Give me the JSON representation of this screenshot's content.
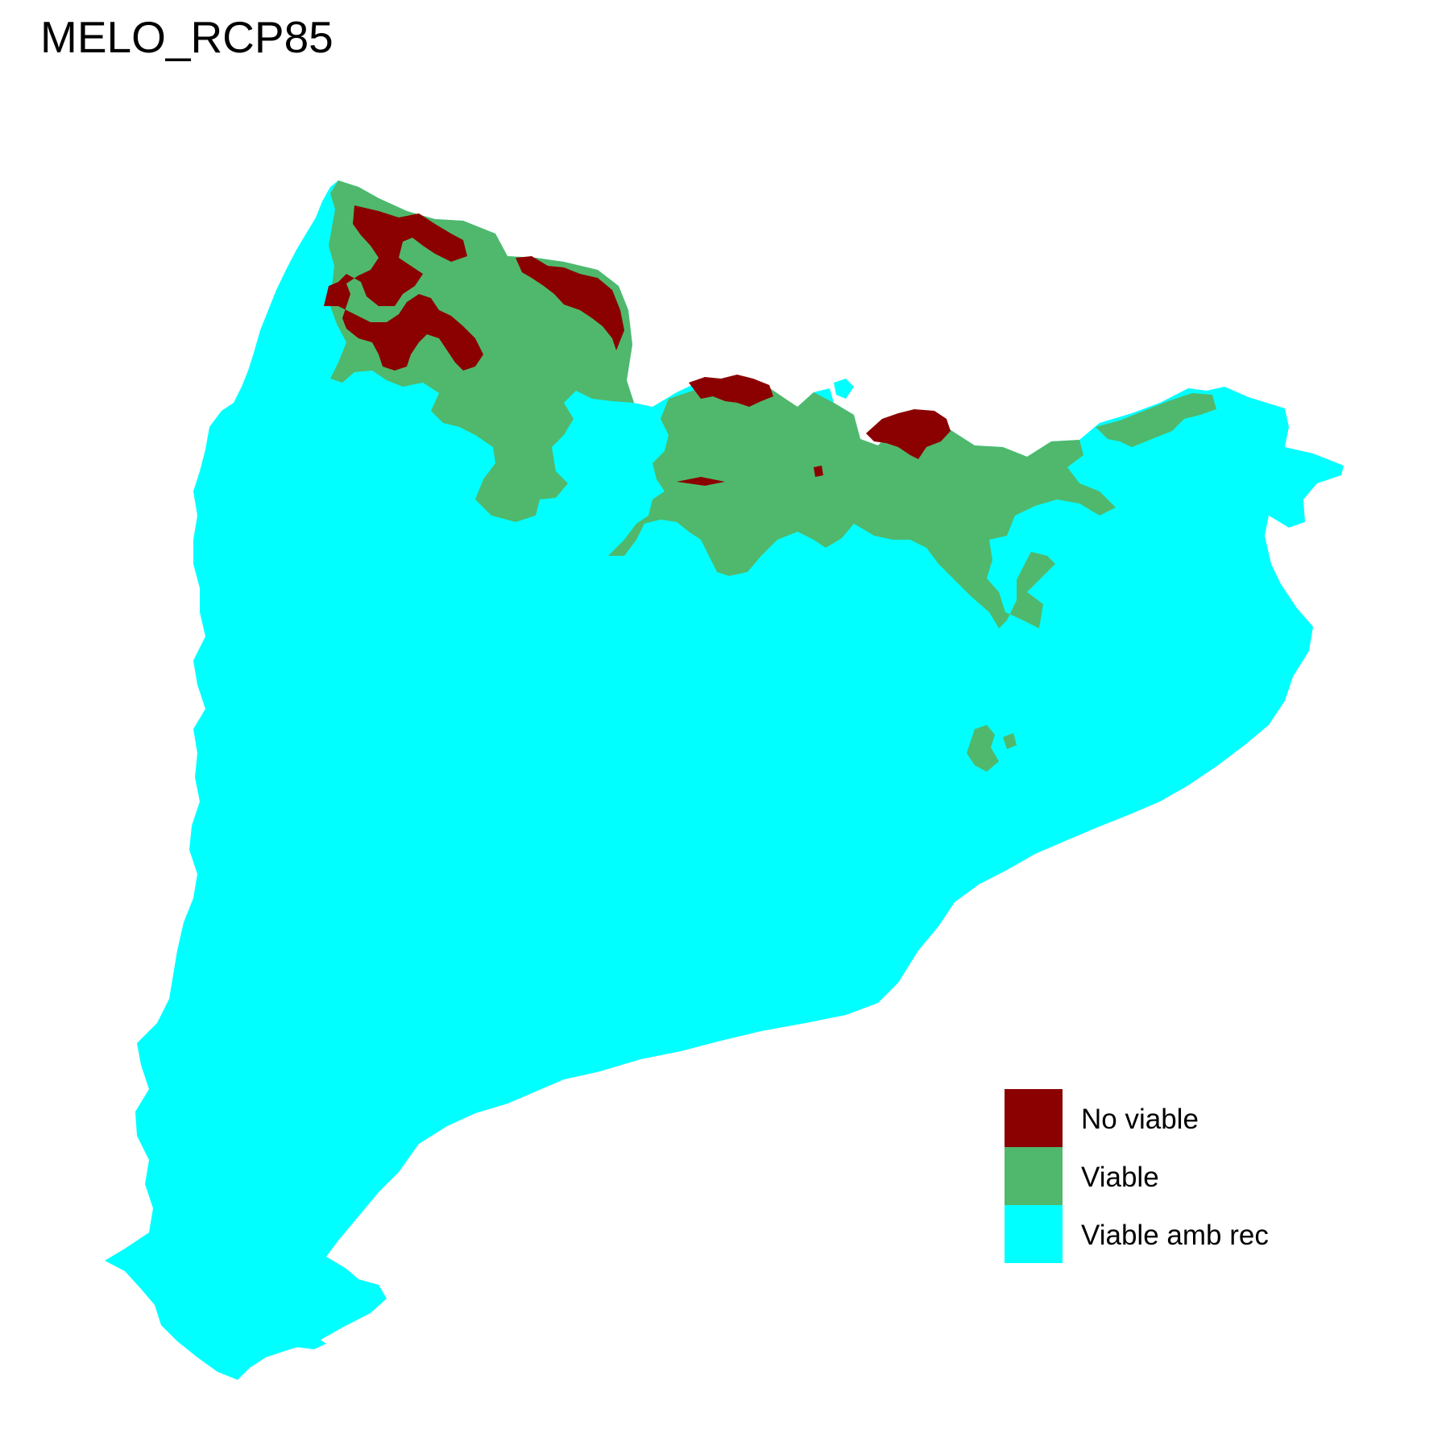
{
  "title": "MELO_RCP85",
  "legend": {
    "items": [
      {
        "label": "No viable",
        "color": "#8B0000"
      },
      {
        "label": "Viable",
        "color": "#50B86C"
      },
      {
        "label": "Viable amb rec",
        "color": "#00FFFF"
      }
    ]
  }
}
